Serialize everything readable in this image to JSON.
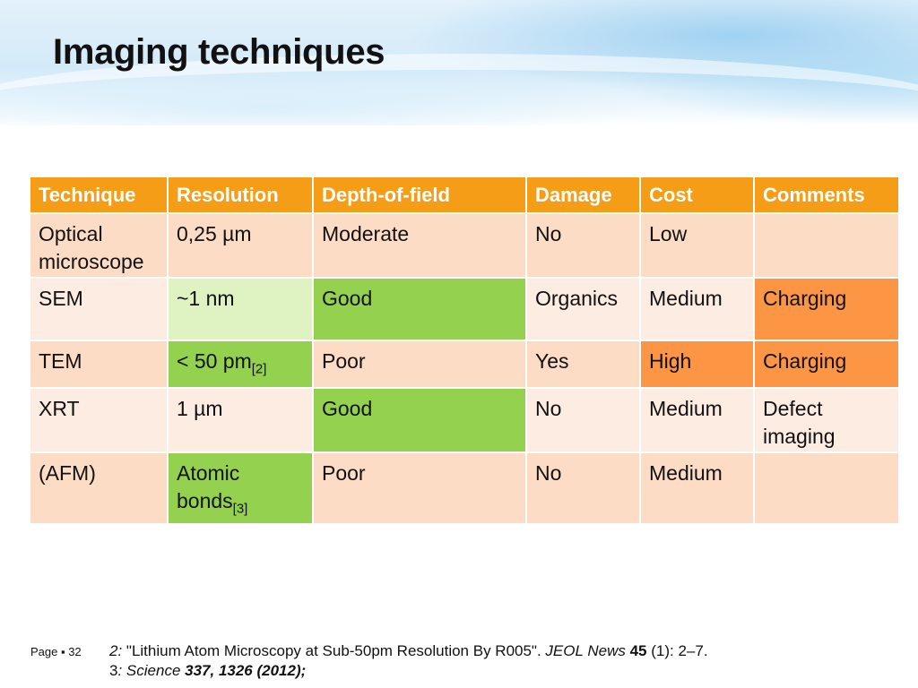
{
  "slide": {
    "title": "Imaging techniques",
    "page": "Page ▪ 32"
  },
  "table": {
    "headers": [
      "Technique",
      "Resolution",
      "Depth-of-field",
      "Damage",
      "Cost",
      "Comments"
    ],
    "rows": [
      {
        "technique": [
          "Optical",
          "microscope"
        ],
        "resolution": "0,25 µm",
        "resolution_ref": "",
        "depth": "Moderate",
        "damage": "No",
        "cost": "Low",
        "comments": [
          "",
          ""
        ]
      },
      {
        "technique": [
          "SEM",
          ""
        ],
        "resolution": "~1 nm",
        "resolution_ref": "",
        "depth": "Good",
        "damage": "Organics",
        "cost": "Medium",
        "comments": [
          "Charging",
          ""
        ]
      },
      {
        "technique": [
          "TEM",
          ""
        ],
        "resolution": "< 50 pm",
        "resolution_ref": "[2]",
        "depth": "Poor",
        "damage": "Yes",
        "cost": "High",
        "comments": [
          "Charging",
          ""
        ]
      },
      {
        "technique": [
          "XRT",
          ""
        ],
        "resolution": "1 µm",
        "resolution_ref": "",
        "depth": "Good",
        "damage": "No",
        "cost": "Medium",
        "comments": [
          "Defect",
          "imaging"
        ]
      },
      {
        "technique": [
          "(AFM)",
          ""
        ],
        "resolution": "Atomic",
        "resolution_line2": "bonds",
        "resolution_ref": "[3]",
        "depth": "Poor",
        "damage": "No",
        "cost": "Medium",
        "comments": [
          "",
          ""
        ]
      }
    ],
    "colors": {
      "header": "#f59d17",
      "row_odd": "#fddcc5",
      "row_even": "#fdece2",
      "light_green": "#def2c2",
      "green": "#93d14f",
      "orange": "#fd9644"
    }
  },
  "references": {
    "ref2_num": "2:",
    "ref2_text": " \"Lithium Atom Microscopy at Sub-50pm Resolution By R005\". ",
    "ref2_journal": "JEOL News",
    "ref2_vol": " 45",
    "ref2_rest": " (1): 2–7.",
    "ref3_num": "3",
    "ref3_colon": ":",
    "ref3_journal": " Science",
    "ref3_rest": " 337, 1326 (2012);"
  }
}
